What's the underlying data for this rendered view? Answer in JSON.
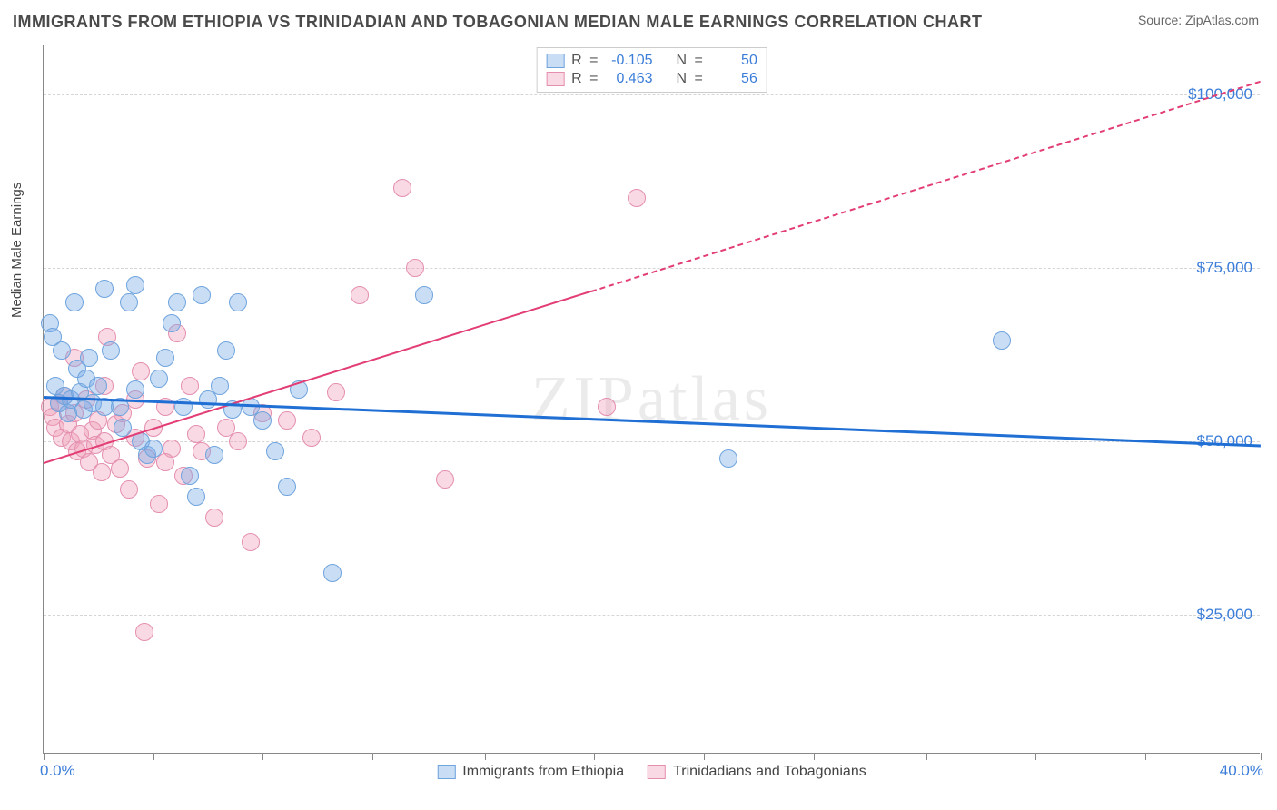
{
  "header": {
    "title": "IMMIGRANTS FROM ETHIOPIA VS TRINIDADIAN AND TOBAGONIAN MEDIAN MALE EARNINGS CORRELATION CHART",
    "source_prefix": "Source: ",
    "source_name": "ZipAtlas.com"
  },
  "axes": {
    "ylabel": "Median Male Earnings",
    "xmin": 0.0,
    "xmax": 40.0,
    "ymin": 5000,
    "ymax": 107000,
    "yticks": [
      25000,
      50000,
      75000,
      100000
    ],
    "ytick_labels": [
      "$25,000",
      "$50,000",
      "$75,000",
      "$100,000"
    ],
    "xtick_positions": [
      0,
      3.6,
      7.2,
      10.8,
      14.5,
      18.1,
      21.7,
      25.3,
      29.0,
      32.6,
      36.2,
      40.0
    ],
    "xmin_label": "0.0%",
    "xmax_label": "40.0%"
  },
  "watermark": "ZIPatlas",
  "series": {
    "blue": {
      "label": "Immigrants from Ethiopia",
      "fill": "rgba(120,170,230,0.40)",
      "stroke": "#6fa4dd",
      "r_value": "-0.105",
      "n_value": "50",
      "trend": {
        "x1": 0.0,
        "y1": 56500,
        "x2": 40.0,
        "y2": 49500,
        "solid_to_x": 40.0,
        "color": "#1f6fd4",
        "width": 3
      },
      "marker_radius": 10,
      "points": [
        [
          0.2,
          67000
        ],
        [
          0.3,
          65000
        ],
        [
          0.4,
          58000
        ],
        [
          0.5,
          55500
        ],
        [
          0.6,
          63000
        ],
        [
          0.7,
          56500
        ],
        [
          0.8,
          54000
        ],
        [
          0.9,
          56000
        ],
        [
          1.0,
          70000
        ],
        [
          1.1,
          60500
        ],
        [
          1.2,
          57000
        ],
        [
          1.3,
          54500
        ],
        [
          1.4,
          59000
        ],
        [
          1.6,
          55500
        ],
        [
          1.8,
          58000
        ],
        [
          2.0,
          72000
        ],
        [
          2.2,
          63000
        ],
        [
          2.5,
          55000
        ],
        [
          2.6,
          52000
        ],
        [
          2.8,
          70000
        ],
        [
          3.0,
          72500
        ],
        [
          3.0,
          57500
        ],
        [
          3.2,
          50000
        ],
        [
          3.4,
          48000
        ],
        [
          3.6,
          49000
        ],
        [
          3.8,
          59000
        ],
        [
          4.0,
          62000
        ],
        [
          4.2,
          67000
        ],
        [
          4.4,
          70000
        ],
        [
          4.6,
          55000
        ],
        [
          4.8,
          45000
        ],
        [
          5.0,
          42000
        ],
        [
          5.2,
          71000
        ],
        [
          5.4,
          56000
        ],
        [
          5.6,
          48000
        ],
        [
          5.8,
          58000
        ],
        [
          6.0,
          63000
        ],
        [
          6.2,
          54500
        ],
        [
          6.4,
          70000
        ],
        [
          6.8,
          55000
        ],
        [
          7.2,
          53000
        ],
        [
          7.6,
          48500
        ],
        [
          8.0,
          43500
        ],
        [
          8.4,
          57500
        ],
        [
          9.5,
          31000
        ],
        [
          12.5,
          71000
        ],
        [
          22.5,
          47500
        ],
        [
          31.5,
          64500
        ],
        [
          2.0,
          55000
        ],
        [
          1.5,
          62000
        ]
      ]
    },
    "pink": {
      "label": "Trinidadians and Tobagonians",
      "fill": "rgba(240,160,185,0.40)",
      "stroke": "#e48fb0",
      "r_value": "0.463",
      "n_value": "56",
      "trend": {
        "x1": 0.0,
        "y1": 47000,
        "x2": 40.0,
        "y2": 102000,
        "solid_to_x": 18.0,
        "color": "#e23d74",
        "width": 2.5
      },
      "marker_radius": 10,
      "points": [
        [
          0.2,
          55000
        ],
        [
          0.3,
          53500
        ],
        [
          0.4,
          52000
        ],
        [
          0.5,
          55500
        ],
        [
          0.6,
          50500
        ],
        [
          0.7,
          56500
        ],
        [
          0.8,
          52500
        ],
        [
          0.9,
          50000
        ],
        [
          1.0,
          54000
        ],
        [
          1.1,
          48500
        ],
        [
          1.2,
          51000
        ],
        [
          1.3,
          49000
        ],
        [
          1.4,
          56000
        ],
        [
          1.5,
          47000
        ],
        [
          1.6,
          51500
        ],
        [
          1.7,
          49500
        ],
        [
          1.8,
          53000
        ],
        [
          1.9,
          45500
        ],
        [
          2.0,
          50000
        ],
        [
          2.1,
          65000
        ],
        [
          2.2,
          48000
        ],
        [
          2.4,
          52500
        ],
        [
          2.5,
          46000
        ],
        [
          2.6,
          54000
        ],
        [
          2.8,
          43000
        ],
        [
          3.0,
          50500
        ],
        [
          3.2,
          60000
        ],
        [
          3.3,
          22500
        ],
        [
          3.4,
          47500
        ],
        [
          3.6,
          52000
        ],
        [
          3.8,
          41000
        ],
        [
          4.0,
          55000
        ],
        [
          4.2,
          49000
        ],
        [
          4.4,
          65500
        ],
        [
          4.6,
          45000
        ],
        [
          4.8,
          58000
        ],
        [
          5.0,
          51000
        ],
        [
          5.2,
          48500
        ],
        [
          5.6,
          39000
        ],
        [
          6.0,
          52000
        ],
        [
          6.4,
          50000
        ],
        [
          6.8,
          35500
        ],
        [
          7.2,
          54000
        ],
        [
          8.0,
          53000
        ],
        [
          8.8,
          50500
        ],
        [
          9.6,
          57000
        ],
        [
          10.4,
          71000
        ],
        [
          11.8,
          86500
        ],
        [
          12.2,
          75000
        ],
        [
          13.2,
          44500
        ],
        [
          18.5,
          55000
        ],
        [
          19.5,
          85000
        ],
        [
          1.0,
          62000
        ],
        [
          2.0,
          58000
        ],
        [
          3.0,
          56000
        ],
        [
          4.0,
          47000
        ]
      ]
    }
  },
  "legend_top": {
    "r_label": "R",
    "n_label": "N",
    "eq": "="
  },
  "colors": {
    "title": "#4a4a4a",
    "axis_text": "#3b7dd8",
    "grid": "#d5d5d5",
    "background": "#ffffff"
  },
  "typography": {
    "title_fontsize": 18,
    "axis_label_fontsize": 15,
    "tick_fontsize": 17,
    "legend_fontsize": 16
  }
}
